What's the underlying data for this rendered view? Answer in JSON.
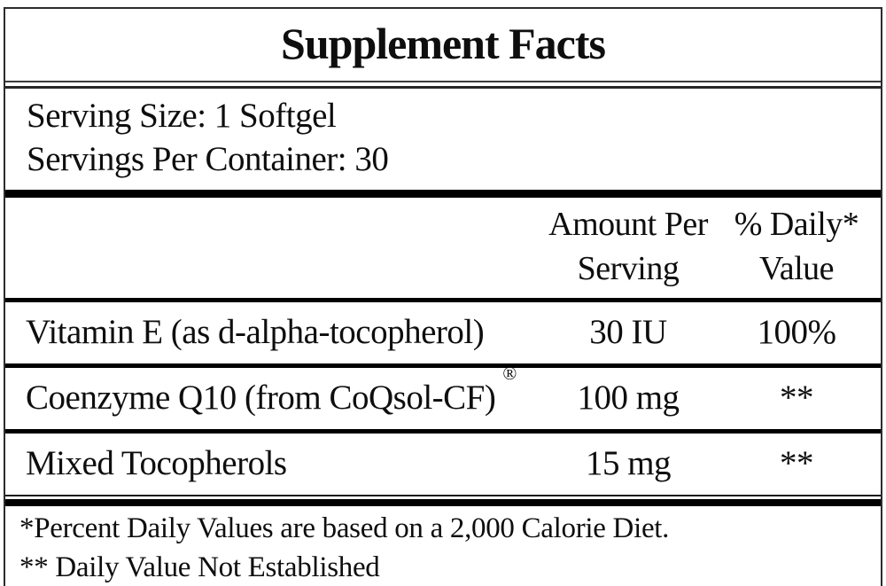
{
  "label": {
    "title": "Supplement Facts",
    "serving": {
      "size": "Serving Size: 1 Softgel",
      "per_container": "Servings Per Container: 30"
    },
    "header": {
      "amount_line1": "Amount Per",
      "amount_line2": "Serving",
      "dv_line1": "% Daily*",
      "dv_line2": "Value"
    },
    "rows": [
      {
        "name": "Vitamin E (as d-alpha-tocopherol)",
        "trademark": "",
        "amount": "30 IU",
        "daily_value": "100%"
      },
      {
        "name": "Coenzyme Q10 (from CoQsol-CF)",
        "trademark": "®",
        "amount": "100 mg",
        "daily_value": "**"
      },
      {
        "name": "Mixed Tocopherols",
        "trademark": "",
        "amount": "15 mg",
        "daily_value": "**"
      }
    ],
    "footnotes": {
      "percent": "*Percent Daily Values are based on a 2,000 Calorie Diet.",
      "not_established": "** Daily Value Not Established"
    },
    "colors": {
      "border": "#2c2c2c",
      "rule": "#000000",
      "text": "#0e0e0e",
      "background": "#ffffff"
    }
  }
}
